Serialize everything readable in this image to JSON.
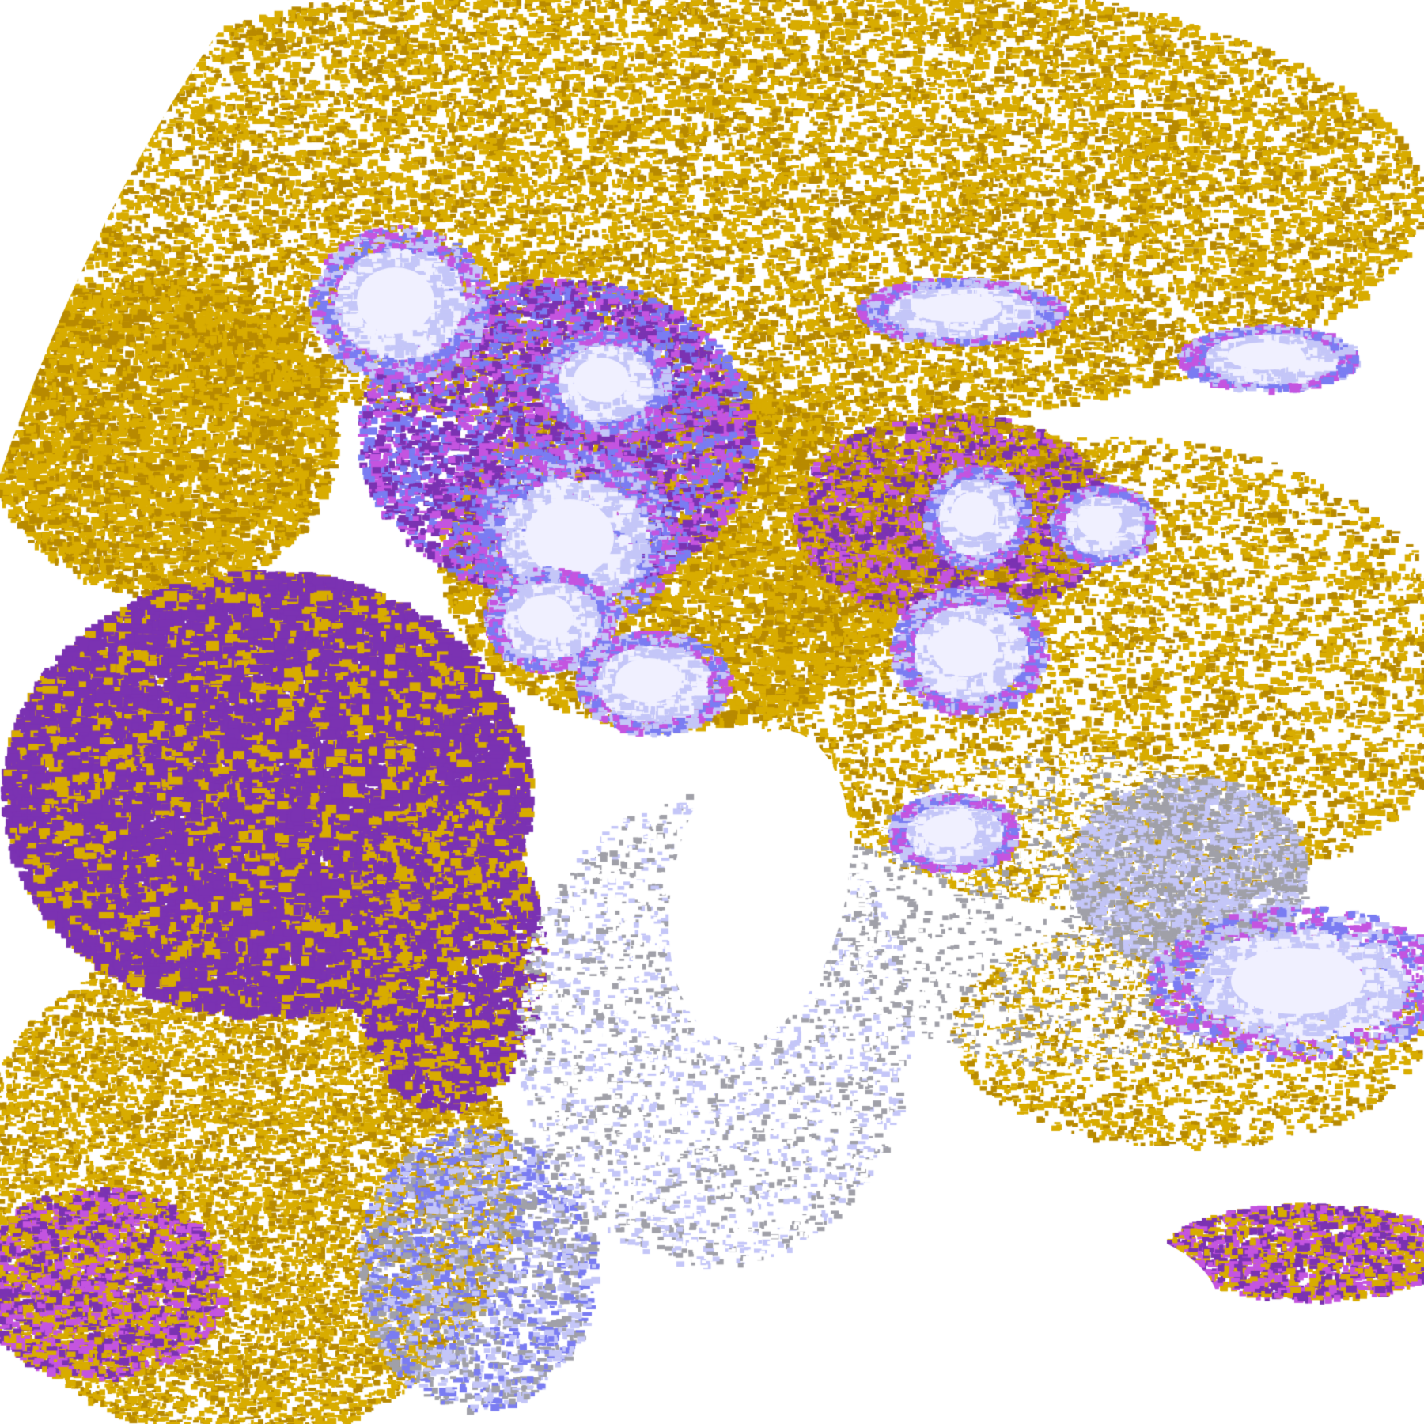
{
  "image": {
    "kind": "satellite cloud classification imagery",
    "palette": {
      "background": "#ffffff",
      "gold": "#d8ac00",
      "dark_gold": "#b88a00",
      "purple": "#7b32b2",
      "magenta": "#c454e0",
      "periwinkle": "#7a7cf2",
      "lavender": "#c4c6f8",
      "cloud_white": "#f0f0ff",
      "gray": "#a0a0a8"
    }
  }
}
